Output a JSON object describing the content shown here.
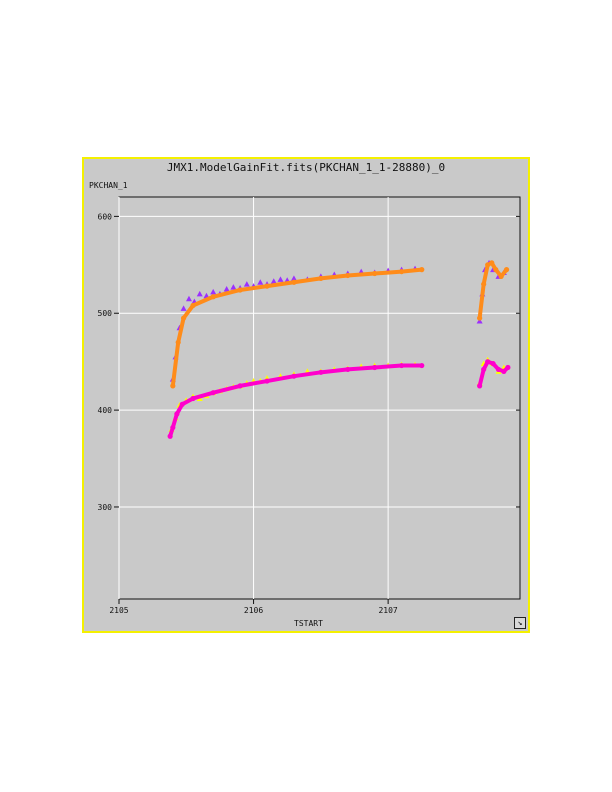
{
  "window": {
    "title": "JMX1.ModelGainFit.fits(PKCHAN_1_1-28880)_0",
    "border_color": "#f4f000",
    "background": "#c9c9c9"
  },
  "chart_data": {
    "type": "scatter",
    "title": "JMX1.ModelGainFit.fits(PKCHAN_1_1-28880)_0",
    "xlabel": "TSTART",
    "ylabel": "PKCHAN_1",
    "xlim": [
      2105,
      2107.98
    ],
    "ylim": [
      205,
      620
    ],
    "x_ticks": [
      "2105",
      "2106",
      "2107"
    ],
    "x_tick_values": [
      2105,
      2106,
      2107
    ],
    "y_ticks": [
      "300",
      "400",
      "500",
      "600"
    ],
    "y_tick_values": [
      300,
      400,
      500,
      600
    ],
    "grid": true,
    "series": [
      {
        "style": "purple triangles (data, upper)",
        "color": "#9b30ff",
        "marker": "triangle",
        "points": [
          [
            2105.4,
            432
          ],
          [
            2105.42,
            455
          ],
          [
            2105.45,
            485
          ],
          [
            2105.48,
            505
          ],
          [
            2105.52,
            515
          ],
          [
            2105.56,
            512
          ],
          [
            2105.6,
            520
          ],
          [
            2105.65,
            518
          ],
          [
            2105.7,
            522
          ],
          [
            2105.75,
            520
          ],
          [
            2105.8,
            525
          ],
          [
            2105.85,
            527
          ],
          [
            2105.9,
            526
          ],
          [
            2105.95,
            530
          ],
          [
            2106.0,
            528
          ],
          [
            2106.05,
            532
          ],
          [
            2106.1,
            530
          ],
          [
            2106.15,
            533
          ],
          [
            2106.2,
            535
          ],
          [
            2106.25,
            534
          ],
          [
            2106.3,
            536
          ],
          [
            2106.4,
            535
          ],
          [
            2106.5,
            538
          ],
          [
            2106.6,
            540
          ],
          [
            2106.7,
            541
          ],
          [
            2106.8,
            543
          ],
          [
            2106.9,
            542
          ],
          [
            2107.0,
            544
          ],
          [
            2107.1,
            545
          ],
          [
            2107.2,
            546
          ],
          [
            2107.68,
            492
          ],
          [
            2107.7,
            520
          ],
          [
            2107.72,
            545
          ],
          [
            2107.75,
            552
          ],
          [
            2107.78,
            545
          ],
          [
            2107.82,
            538
          ],
          [
            2107.86,
            542
          ]
        ]
      },
      {
        "style": "orange fit (upper)",
        "color": "#ff8c1a",
        "marker": "line",
        "points": [
          [
            2105.4,
            425
          ],
          [
            2105.44,
            470
          ],
          [
            2105.48,
            495
          ],
          [
            2105.55,
            508
          ],
          [
            2105.7,
            517
          ],
          [
            2105.9,
            524
          ],
          [
            2106.1,
            528
          ],
          [
            2106.3,
            532
          ],
          [
            2106.5,
            536
          ],
          [
            2106.7,
            539
          ],
          [
            2106.9,
            541
          ],
          [
            2107.1,
            543
          ],
          [
            2107.25,
            545
          ],
          [
            2107.68,
            495
          ],
          [
            2107.71,
            530
          ],
          [
            2107.74,
            550
          ],
          [
            2107.77,
            552
          ],
          [
            2107.8,
            545
          ],
          [
            2107.84,
            538
          ],
          [
            2107.88,
            545
          ]
        ]
      },
      {
        "style": "yellow triangles (data, lower)",
        "color": "#ffff00",
        "marker": "triangle",
        "points": [
          [
            2105.39,
            380
          ],
          [
            2105.42,
            392
          ],
          [
            2105.45,
            405
          ],
          [
            2105.5,
            410
          ],
          [
            2105.55,
            414
          ],
          [
            2105.6,
            412
          ],
          [
            2105.65,
            415
          ],
          [
            2105.7,
            418
          ],
          [
            2105.75,
            420
          ],
          [
            2105.8,
            422
          ],
          [
            2105.85,
            424
          ],
          [
            2105.9,
            425
          ],
          [
            2105.95,
            428
          ],
          [
            2106.0,
            430
          ],
          [
            2106.05,
            430
          ],
          [
            2106.1,
            433
          ],
          [
            2106.2,
            435
          ],
          [
            2106.3,
            437
          ],
          [
            2106.4,
            440
          ],
          [
            2106.5,
            440
          ],
          [
            2106.6,
            442
          ],
          [
            2106.7,
            443
          ],
          [
            2106.8,
            445
          ],
          [
            2106.9,
            446
          ],
          [
            2107.0,
            446
          ],
          [
            2107.1,
            447
          ],
          [
            2107.2,
            447
          ],
          [
            2107.68,
            428
          ],
          [
            2107.71,
            448
          ],
          [
            2107.74,
            452
          ],
          [
            2107.78,
            448
          ],
          [
            2107.82,
            440
          ],
          [
            2107.86,
            444
          ]
        ]
      },
      {
        "style": "magenta fit (lower)",
        "color": "#ff00cc",
        "marker": "line",
        "points": [
          [
            2105.38,
            373
          ],
          [
            2105.4,
            382
          ],
          [
            2105.43,
            396
          ],
          [
            2105.47,
            406
          ],
          [
            2105.55,
            412
          ],
          [
            2105.7,
            418
          ],
          [
            2105.9,
            425
          ],
          [
            2106.1,
            430
          ],
          [
            2106.3,
            435
          ],
          [
            2106.5,
            439
          ],
          [
            2106.7,
            442
          ],
          [
            2106.9,
            444
          ],
          [
            2107.1,
            446
          ],
          [
            2107.25,
            446
          ],
          [
            2107.68,
            425
          ],
          [
            2107.71,
            442
          ],
          [
            2107.74,
            450
          ],
          [
            2107.78,
            448
          ],
          [
            2107.82,
            442
          ],
          [
            2107.86,
            440
          ],
          [
            2107.89,
            444
          ]
        ]
      }
    ]
  }
}
